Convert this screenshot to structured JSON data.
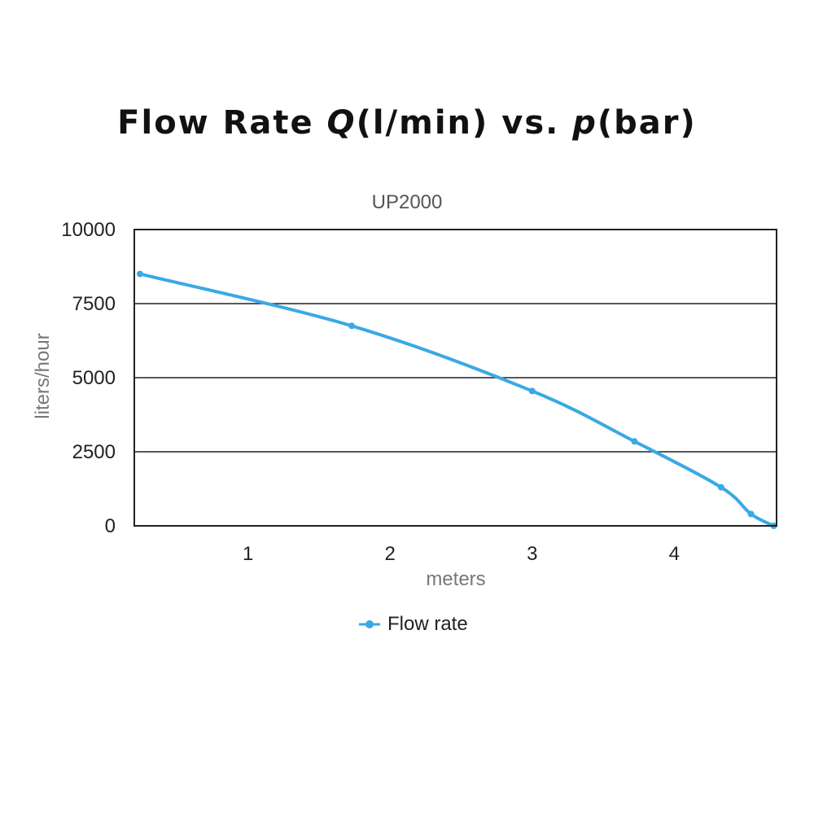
{
  "header": {
    "title_pre": "Flow Rate ",
    "title_q": "Q",
    "title_mid": "(l/min) vs. ",
    "title_p": "p",
    "title_post": "(bar)"
  },
  "chart_data": {
    "type": "line",
    "title": "Flow Rate Q(l/min) vs. p(bar)",
    "subtitle": "UP2000",
    "xlabel": "meters",
    "ylabel": "liters/hour",
    "xlim": [
      0.2,
      4.72
    ],
    "ylim": [
      0,
      10000
    ],
    "x_ticks": [
      "1",
      "2",
      "3",
      "4"
    ],
    "y_ticks": [
      "10000",
      "7500",
      "5000",
      "2500",
      "0"
    ],
    "grid": "horizontal",
    "legend_position": "bottom-center",
    "colors": {
      "line": "#3aa9e4",
      "grid": "#222222",
      "frame": "#222222"
    },
    "series": [
      {
        "name": "Flow rate",
        "x": [
          0.24,
          1.73,
          3.0,
          3.72,
          4.33,
          4.54,
          4.7
        ],
        "y": [
          8500,
          6750,
          4550,
          2850,
          1300,
          400,
          0
        ]
      }
    ]
  }
}
